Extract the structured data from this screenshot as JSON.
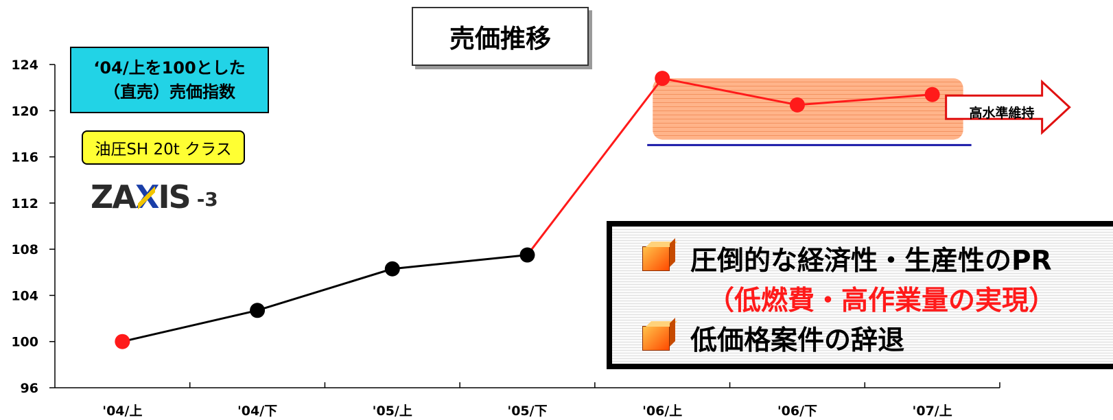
{
  "title": "売価推移",
  "index_note": {
    "line1": "‘04/上を100とした",
    "line2": "（直売）売価指数"
  },
  "machine_class": "油圧SH 20t クラス",
  "logo": {
    "word_left": "ZA",
    "word_x": "X",
    "word_right": "IS",
    "suffix": "-3",
    "name": "zaxis-logo"
  },
  "band_label": "高水準維持",
  "callout": {
    "bullet1": "圧倒的な経済性・生産性のPR",
    "sub": "（低燃費・高作業量の実現）",
    "bullet2": "低価格案件の辞退"
  },
  "colors": {
    "line_black": "#000000",
    "line_red": "#ff1a1a",
    "band_fill": "#ffb48a",
    "band_baseline": "#1a1aa8",
    "arrow_outline": "#e01010",
    "note_bg": "#22d3e6",
    "class_bg": "#ffff33"
  },
  "chart_data": {
    "type": "line",
    "categories": [
      "'04/上",
      "'04/下",
      "'05/上",
      "'05/下",
      "'06/上",
      "'06/下",
      "'07/上"
    ],
    "values": [
      100,
      102.7,
      106.3,
      107.5,
      122.8,
      120.5,
      121.4
    ],
    "point_colors": [
      "red",
      "black",
      "black",
      "black",
      "red",
      "red",
      "red"
    ],
    "segment_colors": [
      "black",
      "black",
      "black",
      "red",
      "red",
      "red"
    ],
    "ylim": [
      96,
      124
    ],
    "yticks": [
      96,
      100,
      104,
      108,
      112,
      116,
      120,
      124
    ],
    "highlight_band": {
      "from_category": "'06/上",
      "to_category": "'07/上",
      "ylim": [
        117.5,
        122.8
      ]
    }
  }
}
